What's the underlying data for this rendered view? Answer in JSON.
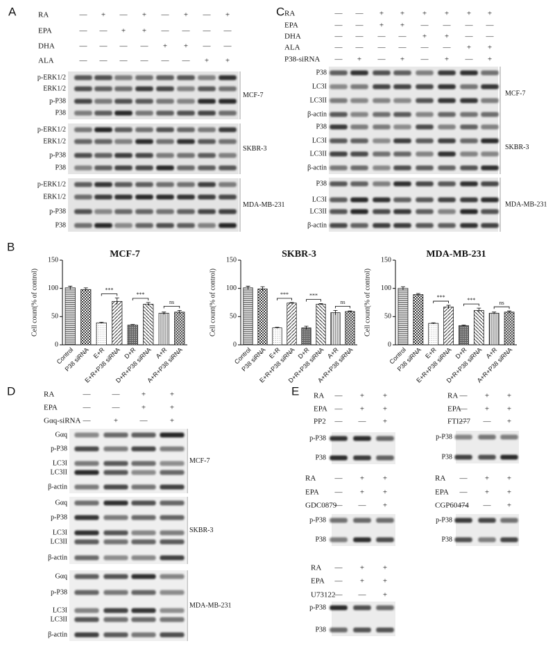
{
  "blot_panels": [
    {
      "letter": "A",
      "treatments": [
        {
          "label": "RA",
          "signs": [
            "—",
            "+",
            "—",
            "+",
            "—",
            "+",
            "—",
            "+"
          ]
        },
        {
          "label": "EPA",
          "signs": [
            "—",
            "—",
            "+",
            "+",
            "—",
            "—",
            "—",
            "—"
          ]
        },
        {
          "label": "DHA",
          "signs": [
            "—",
            "—",
            "—",
            "—",
            "+",
            "+",
            "—",
            "—"
          ]
        },
        {
          "label": "ALA",
          "signs": [
            "—",
            "—",
            "—",
            "—",
            "—",
            "—",
            "+",
            "+"
          ]
        }
      ],
      "groups": [
        {
          "cell_line": "MCF-7",
          "rows": [
            "p-ERK1/2",
            "ERK1/2",
            "p-P38",
            "P38"
          ]
        },
        {
          "cell_line": "SKBR-3",
          "rows": [
            "p-ERK1/2",
            "ERK1/2",
            "p-P38",
            "P38"
          ]
        },
        {
          "cell_line": "MDA-MB-231",
          "rows": [
            "p-ERK1/2",
            "ERK1/2",
            "p-P38",
            "P38"
          ]
        }
      ]
    },
    {
      "letter": "C",
      "treatments": [
        {
          "label": "RA",
          "signs": [
            "—",
            "—",
            "+",
            "+",
            "+",
            "+",
            "+",
            "+"
          ]
        },
        {
          "label": "EPA",
          "signs": [
            "—",
            "—",
            "+",
            "+",
            "—",
            "—",
            "—",
            "—"
          ]
        },
        {
          "label": "DHA",
          "signs": [
            "—",
            "—",
            "—",
            "—",
            "+",
            "+",
            "—",
            "—"
          ]
        },
        {
          "label": "ALA",
          "signs": [
            "—",
            "—",
            "—",
            "—",
            "—",
            "—",
            "+",
            "+"
          ]
        },
        {
          "label": "P38-siRNA",
          "signs": [
            "—",
            "+",
            "—",
            "+",
            "—",
            "+",
            "—",
            "+"
          ]
        }
      ],
      "groups": [
        {
          "cell_line": "MCF-7",
          "rows": [
            "P38",
            "LC3I",
            "LC3II",
            "β-actin"
          ]
        },
        {
          "cell_line": "SKBR-3",
          "rows": [
            "P38",
            "LC3I",
            "LC3II",
            "β-actin"
          ]
        },
        {
          "cell_line": "MDA-MB-231",
          "rows": [
            "P38",
            "LC3I",
            "LC3II",
            "β-actin"
          ]
        }
      ]
    },
    {
      "letter": "D",
      "treatments": [
        {
          "label": "RA",
          "signs": [
            "—",
            "—",
            "+",
            "+"
          ]
        },
        {
          "label": "EPA",
          "signs": [
            "—",
            "—",
            "+",
            "+"
          ]
        },
        {
          "label": "Gαq-siRNA",
          "signs": [
            "—",
            "+",
            "—",
            "+"
          ]
        }
      ],
      "groups": [
        {
          "cell_line": "MCF-7",
          "rows": [
            "Gαq",
            "p-P38",
            "LC3I",
            "LC3II",
            "β-actin"
          ]
        },
        {
          "cell_line": "SKBR-3",
          "rows": [
            "Gαq",
            "p-P38",
            "LC3I",
            "LC3II",
            "β-actin"
          ]
        },
        {
          "cell_line": "MDA-MB-231",
          "rows": [
            "Gαq",
            "p-P38",
            "LC3I",
            "LC3II",
            "β-actin"
          ]
        }
      ]
    },
    {
      "letter": "E",
      "treatments": [
        {
          "label": "RA",
          "signs": [
            "—",
            "+",
            "+"
          ]
        },
        {
          "label": "EPA",
          "signs": [
            "—",
            "+",
            "+"
          ]
        },
        {
          "label": "PP2",
          "signs": [
            "—",
            "—",
            "+"
          ]
        }
      ],
      "groups": [
        {
          "rows": [
            "p-P38",
            "P38"
          ]
        }
      ]
    },
    {
      "treatments": [
        {
          "label": "RA",
          "signs": [
            "—",
            "+",
            "+"
          ]
        },
        {
          "label": "EPA",
          "signs": [
            "—",
            "+",
            "+"
          ]
        },
        {
          "label": "FTI277",
          "signs": [
            "—",
            "—",
            "+"
          ]
        }
      ],
      "groups": [
        {
          "rows": [
            "p-P38",
            "P38"
          ]
        }
      ]
    },
    {
      "treatments": [
        {
          "label": "RA",
          "signs": [
            "—",
            "+",
            "+"
          ]
        },
        {
          "label": "EPA",
          "signs": [
            "—",
            "+",
            "+"
          ]
        },
        {
          "label": "GDC0879",
          "signs": [
            "—",
            "—",
            "+"
          ]
        }
      ],
      "groups": [
        {
          "rows": [
            "p-P38",
            "P38"
          ]
        }
      ]
    },
    {
      "treatments": [
        {
          "label": "RA",
          "signs": [
            "—",
            "+",
            "+"
          ]
        },
        {
          "label": "EPA",
          "signs": [
            "—",
            "+",
            "+"
          ]
        },
        {
          "label": "CGP60474",
          "signs": [
            "—",
            "—",
            "+"
          ]
        }
      ],
      "groups": [
        {
          "rows": [
            "p-P38",
            "P38"
          ]
        }
      ]
    },
    {
      "treatments": [
        {
          "label": "RA",
          "signs": [
            "—",
            "+",
            "+"
          ]
        },
        {
          "label": "EPA",
          "signs": [
            "—",
            "+",
            "+"
          ]
        },
        {
          "label": "U73122",
          "signs": [
            "—",
            "—",
            "+"
          ]
        }
      ],
      "groups": [
        {
          "rows": [
            "p-P38",
            "P38"
          ]
        }
      ]
    }
  ],
  "chart_panel_letter": "B",
  "chart_data": [
    {
      "type": "bar",
      "title": "MCF-7",
      "ylabel": "Cell count(% of control)",
      "categories": [
        "Control",
        "P38 siRNA",
        "E+R",
        "E+R+P38 siRNA",
        "D+R",
        "D+R+P38 siRNA",
        "A+R",
        "A+R+P38 siRNA"
      ],
      "values": [
        101,
        98,
        39,
        77,
        35,
        72,
        56,
        58
      ],
      "errors": [
        3,
        3,
        1,
        6,
        1,
        3,
        2,
        3
      ],
      "ylim": [
        0,
        150
      ],
      "yticks": [
        0,
        50,
        100,
        150
      ],
      "annotations": [
        "***",
        "***",
        "ns"
      ]
    },
    {
      "type": "bar",
      "title": "SKBR-3",
      "ylabel": "Cell count(% of control)",
      "categories": [
        "Control",
        "P38 siRNA",
        "E+R",
        "E+R+P38 siRNA",
        "D+R",
        "D+R+P38 siRNA",
        "A+R",
        "A+R+P38 siRNA"
      ],
      "values": [
        101,
        99,
        30,
        74,
        30,
        72,
        57,
        59
      ],
      "errors": [
        3,
        4,
        1,
        1,
        3,
        1,
        4,
        1
      ],
      "ylim": [
        0,
        150
      ],
      "yticks": [
        0,
        50,
        100,
        150
      ],
      "annotations": [
        "***",
        "***",
        "ns"
      ]
    },
    {
      "type": "bar",
      "title": "MDA-MB-231",
      "ylabel": "Cell count(% of control)",
      "categories": [
        "Control",
        "P38 siRNA",
        "E+R",
        "E+R+P38 siRNA",
        "D+R",
        "D+R+P38 siRNA",
        "A+R",
        "A+R+P38 siRNA"
      ],
      "values": [
        100,
        89,
        38,
        67,
        34,
        61,
        56,
        58
      ],
      "errors": [
        3,
        2,
        1,
        3,
        1,
        4,
        2,
        2
      ],
      "ylim": [
        0,
        150
      ],
      "yticks": [
        0,
        50,
        100,
        150
      ],
      "annotations": [
        "***",
        "***",
        "ns"
      ]
    }
  ]
}
